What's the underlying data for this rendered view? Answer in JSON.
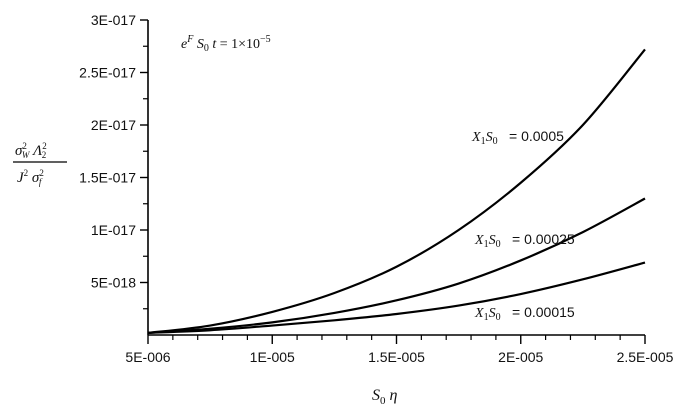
{
  "chart_data": {
    "type": "line",
    "title": "",
    "annotation": "e^F S0 t = 1×10^-5",
    "xlabel": "S0 η",
    "ylabel": "σW² Λ2² / J² σf²",
    "xlim": [
      5e-06,
      2.5e-05
    ],
    "ylim": [
      0,
      3e-17
    ],
    "grid": false,
    "x_ticks": [
      {
        "value": 5e-06,
        "label": "5E-006"
      },
      {
        "value": 1e-05,
        "label": "1E-005"
      },
      {
        "value": 1.5e-05,
        "label": "1.5E-005"
      },
      {
        "value": 2e-05,
        "label": "2E-005"
      },
      {
        "value": 2.5e-05,
        "label": "2.5E-005"
      }
    ],
    "y_ticks": [
      {
        "value": 5e-18,
        "label": "5E-018"
      },
      {
        "value": 1e-17,
        "label": "1E-017"
      },
      {
        "value": 1.5e-17,
        "label": "1.5E-017"
      },
      {
        "value": 2e-17,
        "label": "2E-017"
      },
      {
        "value": 2.5e-17,
        "label": "2.5E-017"
      },
      {
        "value": 3e-17,
        "label": "3E-017"
      }
    ],
    "x": [
      5e-06,
      7.5e-06,
      1e-05,
      1.25e-05,
      1.5e-05,
      1.75e-05,
      2e-05,
      2.25e-05,
      2.5e-05
    ],
    "series": [
      {
        "name": "X1S0 = 0.0005",
        "label_text": "= 0.0005",
        "values": [
          2e-19,
          9e-19,
          2.2e-18,
          4e-18,
          6.5e-18,
          1e-17,
          1.45e-17,
          2e-17,
          2.72e-17
        ]
      },
      {
        "name": "X1S0 = 0.00025",
        "label_text": "= 0.00025",
        "values": [
          2e-19,
          6e-19,
          1.2e-18,
          2.1e-18,
          3.3e-18,
          4.9e-18,
          7.1e-18,
          9.8e-18,
          1.3e-17
        ]
      },
      {
        "name": "X1S0 = 0.00015",
        "label_text": "= 0.00015",
        "values": [
          2e-19,
          4.5e-19,
          9e-19,
          1.4e-18,
          2e-18,
          2.8e-18,
          3.9e-18,
          5.3e-18,
          6.9e-18
        ]
      }
    ]
  }
}
